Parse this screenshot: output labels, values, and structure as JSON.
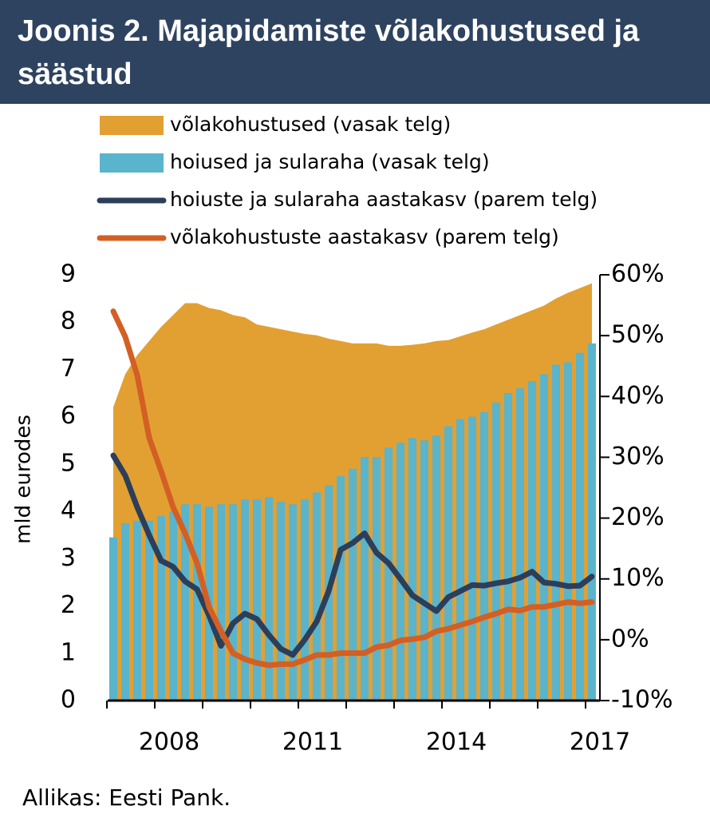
{
  "chart_data": {
    "type": "combo",
    "title": "Joonis 2. Majapidamiste võlakohustused ja säästud",
    "y_label": "mld eurodes",
    "source": "Allikas: Eesti Pank.",
    "categories": [
      null,
      null,
      null,
      null,
      "2008",
      null,
      null,
      null,
      null,
      null,
      null,
      null,
      null,
      null,
      null,
      null,
      "2011",
      null,
      null,
      null,
      null,
      null,
      null,
      null,
      null,
      null,
      null,
      null,
      "2014",
      null,
      null,
      null,
      null,
      null,
      null,
      null,
      null,
      null,
      null,
      null,
      "2017"
    ],
    "ylim": [
      0,
      9
    ],
    "yticks": [
      0,
      1,
      2,
      3,
      4,
      5,
      6,
      7,
      8,
      9
    ],
    "y2lim": [
      -10,
      60
    ],
    "y2ticks": [
      {
        "value": -10,
        "label": "-10%"
      },
      {
        "value": 0,
        "label": "0%"
      },
      {
        "value": 10,
        "label": "10%"
      },
      {
        "value": 20,
        "label": "20%"
      },
      {
        "value": 30,
        "label": "30%"
      },
      {
        "value": 40,
        "label": "40%"
      },
      {
        "value": 50,
        "label": "50%"
      },
      {
        "value": 60,
        "label": "60%"
      }
    ],
    "series": [
      {
        "name": "võlakohustused (vasak telg)",
        "type": "area",
        "color": "#e2a032",
        "values": [
          6.2,
          6.9,
          7.3,
          7.6,
          7.9,
          8.15,
          8.4,
          8.4,
          8.3,
          8.25,
          8.15,
          8.1,
          7.95,
          7.9,
          7.85,
          7.8,
          7.75,
          7.72,
          7.65,
          7.6,
          7.55,
          7.55,
          7.55,
          7.5,
          7.5,
          7.52,
          7.55,
          7.6,
          7.62,
          7.7,
          7.78,
          7.85,
          7.95,
          8.05,
          8.15,
          8.25,
          8.35,
          8.5,
          8.62,
          8.72,
          8.82
        ]
      },
      {
        "name": "hoiused ja sularaha (vasak telg)",
        "type": "bar",
        "color": "#5ab4cc",
        "values": [
          3.45,
          3.75,
          3.8,
          3.8,
          3.9,
          4.0,
          4.15,
          4.15,
          4.1,
          4.15,
          4.15,
          4.25,
          4.25,
          4.3,
          4.2,
          4.15,
          4.25,
          4.4,
          4.55,
          4.75,
          4.9,
          5.15,
          5.15,
          5.35,
          5.45,
          5.55,
          5.5,
          5.6,
          5.8,
          5.95,
          6.0,
          6.1,
          6.3,
          6.5,
          6.6,
          6.75,
          6.9,
          7.1,
          7.15,
          7.35,
          7.55
        ]
      },
      {
        "name": "hoiuste ja sularaha aastakasv (parem telg)",
        "type": "line",
        "axis": "y2",
        "color": "#2c3e5a",
        "values": [
          30.3,
          27,
          21.8,
          17.2,
          13,
          12,
          9.6,
          8.3,
          4,
          -1,
          2.7,
          4.3,
          3.4,
          0.8,
          -1.5,
          -2.5,
          0,
          3,
          8,
          14.8,
          15.9,
          17.5,
          14.3,
          12.6,
          10,
          7.3,
          6,
          4.7,
          7,
          8,
          9,
          8.9,
          9.3,
          9.6,
          10.2,
          11.2,
          9.4,
          9.2,
          8.8,
          8.9,
          10.4
        ]
      },
      {
        "name": "võlakohustuste aastakasv (parem telg)",
        "type": "line",
        "axis": "y2",
        "color": "#d35f24",
        "values": [
          54,
          49.8,
          43.5,
          33.2,
          27.7,
          21.8,
          17.5,
          12.6,
          5.4,
          1.4,
          -2.2,
          -3.2,
          -3.8,
          -4.2,
          -4,
          -4,
          -3.3,
          -2.5,
          -2.5,
          -2.2,
          -2.2,
          -2.2,
          -1.2,
          -0.9,
          -0.1,
          0.1,
          0.4,
          1.4,
          1.8,
          2.4,
          3,
          3.7,
          4.3,
          5,
          4.8,
          5.4,
          5.4,
          5.8,
          6.2,
          6,
          6.2
        ]
      }
    ]
  }
}
